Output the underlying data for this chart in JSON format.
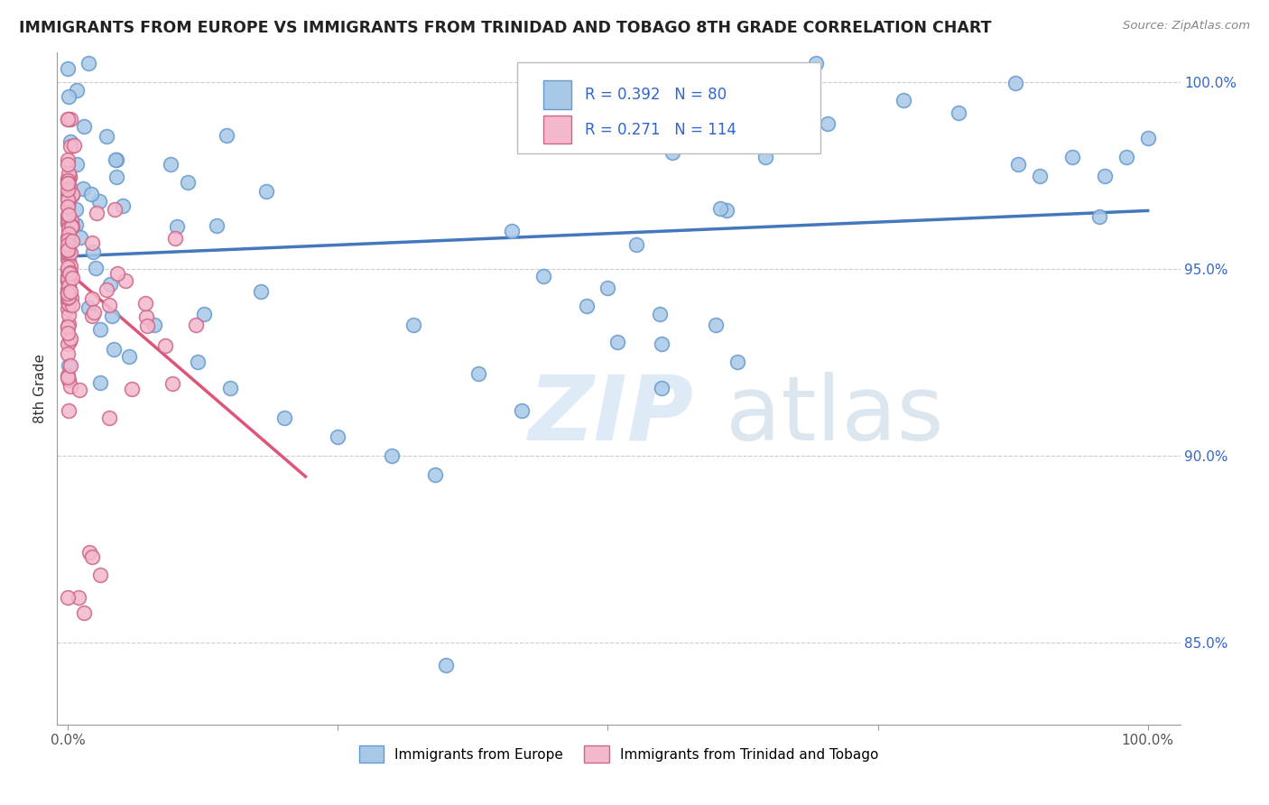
{
  "title": "IMMIGRANTS FROM EUROPE VS IMMIGRANTS FROM TRINIDAD AND TOBAGO 8TH GRADE CORRELATION CHART",
  "source_text": "Source: ZipAtlas.com",
  "ylabel": "8th Grade",
  "R_blue": 0.392,
  "N_blue": 80,
  "R_pink": 0.271,
  "N_pink": 114,
  "blue_color": "#a8c8e8",
  "blue_edge_color": "#6699cc",
  "pink_color": "#f4b8cc",
  "pink_edge_color": "#cc6688",
  "blue_line_color": "#4477bb",
  "pink_line_color": "#dd5577",
  "watermark_zip_color": "#c8dff0",
  "watermark_atlas_color": "#b8cfe0",
  "legend_box_color": "#dddddd",
  "text_color": "#3366cc",
  "title_color": "#222222",
  "source_color": "#888888",
  "ylabel_color": "#333333",
  "xtick_color": "#555555",
  "ytick_color": "#3366cc",
  "grid_color": "#cccccc",
  "spine_color": "#999999"
}
